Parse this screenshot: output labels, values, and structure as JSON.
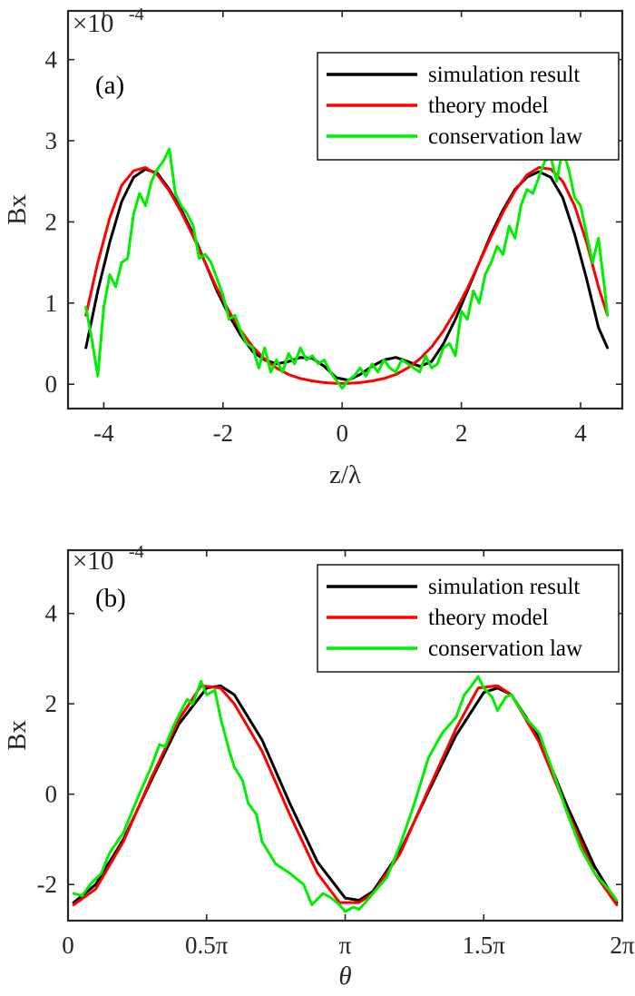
{
  "chart_data": [
    {
      "type": "line",
      "panel_label": "(a)",
      "multiplier": "×10",
      "multiplier_exp": "-4",
      "xlabel": "z/λ",
      "ylabel": "Bx",
      "xlim": [
        -4.6,
        4.7
      ],
      "ylim": [
        -0.3,
        4.6
      ],
      "xticks": [
        -4,
        -2,
        0,
        2,
        4
      ],
      "xtick_labels": [
        "-4",
        "-2",
        "0",
        "2",
        "4"
      ],
      "yticks": [
        0,
        1,
        2,
        3,
        4
      ],
      "ytick_labels": [
        "0",
        "1",
        "2",
        "3",
        "4"
      ],
      "legend": "top-right",
      "grid": false,
      "series": [
        {
          "name": "simulation result",
          "color": "#000000",
          "x": [
            -4.3,
            -4.1,
            -3.9,
            -3.7,
            -3.5,
            -3.3,
            -3.1,
            -2.9,
            -2.7,
            -2.5,
            -2.3,
            -2.1,
            -1.9,
            -1.7,
            -1.5,
            -1.3,
            -1.1,
            -0.9,
            -0.7,
            -0.5,
            -0.3,
            -0.1,
            0.1,
            0.3,
            0.5,
            0.7,
            0.9,
            1.1,
            1.3,
            1.5,
            1.7,
            1.9,
            2.1,
            2.3,
            2.5,
            2.7,
            2.9,
            3.1,
            3.3,
            3.5,
            3.7,
            3.9,
            4.1,
            4.3,
            4.45
          ],
          "y": [
            0.45,
            1.15,
            1.75,
            2.25,
            2.55,
            2.65,
            2.6,
            2.4,
            2.15,
            1.85,
            1.5,
            1.15,
            0.85,
            0.6,
            0.4,
            0.3,
            0.25,
            0.28,
            0.33,
            0.32,
            0.22,
            0.08,
            0.05,
            0.12,
            0.22,
            0.3,
            0.33,
            0.28,
            0.22,
            0.28,
            0.5,
            0.8,
            1.15,
            1.5,
            1.85,
            2.15,
            2.4,
            2.55,
            2.62,
            2.55,
            2.3,
            1.85,
            1.3,
            0.7,
            0.45
          ]
        },
        {
          "name": "theory model",
          "color": "#ff0000",
          "x": [
            -4.3,
            -4.1,
            -3.9,
            -3.7,
            -3.5,
            -3.3,
            -3.1,
            -2.9,
            -2.7,
            -2.5,
            -2.3,
            -2.1,
            -1.9,
            -1.7,
            -1.5,
            -1.3,
            -1.1,
            -0.9,
            -0.7,
            -0.5,
            -0.3,
            -0.1,
            0.1,
            0.3,
            0.5,
            0.7,
            0.9,
            1.1,
            1.3,
            1.5,
            1.7,
            1.9,
            2.1,
            2.3,
            2.5,
            2.7,
            2.9,
            3.1,
            3.3,
            3.5,
            3.7,
            3.9,
            4.1,
            4.3,
            4.45
          ],
          "y": [
            0.85,
            1.5,
            2.05,
            2.45,
            2.63,
            2.67,
            2.58,
            2.38,
            2.12,
            1.82,
            1.5,
            1.18,
            0.9,
            0.66,
            0.46,
            0.31,
            0.2,
            0.12,
            0.07,
            0.04,
            0.02,
            0.01,
            0.01,
            0.02,
            0.04,
            0.07,
            0.12,
            0.2,
            0.31,
            0.46,
            0.66,
            0.9,
            1.18,
            1.5,
            1.82,
            2.12,
            2.38,
            2.58,
            2.67,
            2.65,
            2.5,
            2.2,
            1.75,
            1.2,
            0.85
          ]
        },
        {
          "name": "conservation law",
          "color": "#00ee00",
          "x": [
            -4.3,
            -4.2,
            -4.1,
            -4.0,
            -3.9,
            -3.8,
            -3.7,
            -3.6,
            -3.5,
            -3.4,
            -3.3,
            -3.2,
            -3.1,
            -3.0,
            -2.9,
            -2.8,
            -2.7,
            -2.6,
            -2.5,
            -2.4,
            -2.3,
            -2.2,
            -2.1,
            -2.0,
            -1.9,
            -1.8,
            -1.7,
            -1.6,
            -1.5,
            -1.4,
            -1.3,
            -1.2,
            -1.1,
            -1.0,
            -0.9,
            -0.8,
            -0.7,
            -0.6,
            -0.5,
            -0.4,
            -0.3,
            -0.2,
            -0.1,
            0.0,
            0.1,
            0.2,
            0.3,
            0.4,
            0.5,
            0.6,
            0.7,
            0.8,
            0.9,
            1.0,
            1.1,
            1.2,
            1.3,
            1.4,
            1.5,
            1.6,
            1.7,
            1.8,
            1.9,
            2.0,
            2.1,
            2.2,
            2.3,
            2.4,
            2.5,
            2.6,
            2.7,
            2.8,
            2.9,
            3.0,
            3.1,
            3.2,
            3.3,
            3.4,
            3.5,
            3.6,
            3.7,
            3.8,
            3.9,
            4.0,
            4.1,
            4.2,
            4.3,
            4.4,
            4.45
          ],
          "y": [
            0.95,
            0.55,
            0.1,
            0.95,
            1.35,
            1.2,
            1.5,
            1.55,
            2.1,
            2.35,
            2.2,
            2.5,
            2.65,
            2.75,
            2.9,
            2.35,
            2.2,
            2.1,
            1.95,
            1.55,
            1.6,
            1.5,
            1.3,
            1.1,
            0.8,
            0.85,
            0.65,
            0.5,
            0.45,
            0.2,
            0.45,
            0.15,
            0.3,
            0.15,
            0.38,
            0.25,
            0.45,
            0.3,
            0.35,
            0.25,
            0.3,
            0.15,
            0.05,
            -0.05,
            0.05,
            0.1,
            0.2,
            0.1,
            0.25,
            0.15,
            0.3,
            0.2,
            0.15,
            0.3,
            0.25,
            0.2,
            0.15,
            0.35,
            0.2,
            0.25,
            0.45,
            0.5,
            0.35,
            0.9,
            0.8,
            1.15,
            1.0,
            1.35,
            1.5,
            1.7,
            1.6,
            1.95,
            1.8,
            2.2,
            2.4,
            2.35,
            2.55,
            2.75,
            2.8,
            2.5,
            2.9,
            2.65,
            2.3,
            2.2,
            1.85,
            1.5,
            1.8,
            1.2,
            0.85
          ]
        }
      ]
    },
    {
      "type": "line",
      "panel_label": "(b)",
      "multiplier": "×10",
      "multiplier_exp": "-4",
      "xlabel": "θ",
      "ylabel": "Bx",
      "xlim": [
        0,
        2
      ],
      "ylim": [
        -2.8,
        5.4
      ],
      "xticks": [
        0,
        0.5,
        1,
        1.5,
        2
      ],
      "xtick_labels": [
        "0",
        "0.5π",
        "π",
        "1.5π",
        "2π"
      ],
      "yticks": [
        -2,
        0,
        2,
        4
      ],
      "ytick_labels": [
        "-2",
        "0",
        "2",
        "4"
      ],
      "legend": "top-right",
      "grid": false,
      "series": [
        {
          "name": "simulation result",
          "color": "#000000",
          "x": [
            0.02,
            0.1,
            0.2,
            0.3,
            0.4,
            0.5,
            0.55,
            0.6,
            0.7,
            0.8,
            0.9,
            1.0,
            1.05,
            1.1,
            1.2,
            1.3,
            1.4,
            1.5,
            1.55,
            1.6,
            1.7,
            1.8,
            1.9,
            1.98
          ],
          "y": [
            -2.4,
            -2.0,
            -1.0,
            0.3,
            1.55,
            2.35,
            2.4,
            2.2,
            1.2,
            -0.2,
            -1.5,
            -2.3,
            -2.35,
            -2.15,
            -1.25,
            0.05,
            1.3,
            2.25,
            2.35,
            2.2,
            1.25,
            -0.25,
            -1.6,
            -2.4
          ]
        },
        {
          "name": "theory model",
          "color": "#ff0000",
          "x": [
            0.02,
            0.1,
            0.2,
            0.3,
            0.4,
            0.48,
            0.55,
            0.6,
            0.7,
            0.8,
            0.9,
            0.98,
            1.05,
            1.1,
            1.2,
            1.3,
            1.4,
            1.48,
            1.55,
            1.6,
            1.7,
            1.8,
            1.9,
            1.98
          ],
          "y": [
            -2.45,
            -2.1,
            -1.05,
            0.35,
            1.65,
            2.4,
            2.35,
            2.0,
            0.95,
            -0.45,
            -1.75,
            -2.4,
            -2.4,
            -2.2,
            -1.3,
            0.1,
            1.45,
            2.35,
            2.4,
            2.2,
            1.15,
            -0.35,
            -1.75,
            -2.45
          ]
        },
        {
          "name": "conservation law",
          "color": "#00ee00",
          "x": [
            0.02,
            0.05,
            0.08,
            0.12,
            0.15,
            0.2,
            0.25,
            0.3,
            0.33,
            0.35,
            0.38,
            0.4,
            0.43,
            0.45,
            0.48,
            0.5,
            0.53,
            0.55,
            0.58,
            0.6,
            0.63,
            0.65,
            0.68,
            0.7,
            0.75,
            0.8,
            0.85,
            0.88,
            0.92,
            0.95,
            0.98,
            1.0,
            1.03,
            1.05,
            1.08,
            1.1,
            1.15,
            1.2,
            1.25,
            1.3,
            1.35,
            1.4,
            1.43,
            1.45,
            1.48,
            1.5,
            1.53,
            1.55,
            1.58,
            1.6,
            1.65,
            1.7,
            1.75,
            1.8,
            1.85,
            1.9,
            1.95,
            1.98
          ],
          "y": [
            -2.2,
            -2.25,
            -2.0,
            -1.75,
            -1.3,
            -0.85,
            -0.1,
            0.6,
            1.1,
            1.05,
            1.5,
            1.75,
            2.1,
            2.0,
            2.5,
            2.2,
            2.3,
            1.7,
            1.0,
            0.6,
            0.3,
            -0.2,
            -0.45,
            -1.05,
            -1.55,
            -1.75,
            -2.0,
            -2.45,
            -2.2,
            -2.3,
            -2.45,
            -2.6,
            -2.5,
            -2.55,
            -2.35,
            -2.2,
            -1.85,
            -1.1,
            -0.2,
            0.8,
            1.35,
            1.7,
            2.2,
            2.35,
            2.6,
            2.35,
            2.15,
            1.85,
            2.15,
            2.2,
            1.7,
            1.35,
            0.5,
            -0.4,
            -1.2,
            -1.75,
            -2.1,
            -2.35
          ]
        }
      ]
    }
  ]
}
